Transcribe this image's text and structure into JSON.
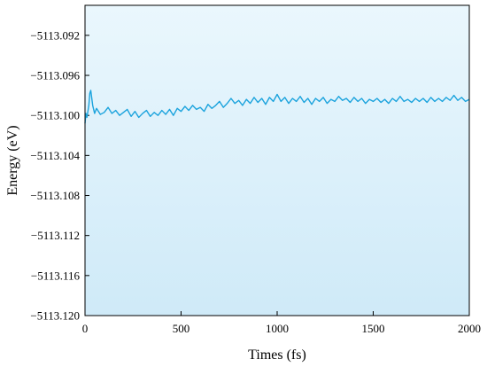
{
  "chart_data": {
    "type": "line",
    "xlabel": "Times (fs)",
    "ylabel": "Energy (eV)",
    "xlim": [
      0,
      2000
    ],
    "ylim": [
      -5113.12,
      -5113.089
    ],
    "x_ticks": [
      0,
      500,
      1000,
      1500,
      2000
    ],
    "x_tick_labels": [
      "0",
      "500",
      "1000",
      "1500",
      "2000"
    ],
    "y_ticks": [
      -5113.092,
      -5113.096,
      -5113.1,
      -5113.104,
      -5113.108,
      -5113.112,
      -5113.116,
      -5113.12
    ],
    "y_tick_labels": [
      "−5113.092",
      "−5113.096",
      "−5113.100",
      "−5113.104",
      "−5113.108",
      "−5113.112",
      "−5113.116",
      "−5113.120"
    ],
    "grid": false,
    "background_gradient": [
      "#eaf7fd",
      "#cfeaf8"
    ],
    "line_color": "#1ba3dd",
    "series": [
      {
        "x": [
          0,
          5,
          10,
          15,
          20,
          25,
          30,
          40,
          50,
          60,
          80,
          100,
          120,
          140,
          160,
          180,
          200,
          220,
          240,
          260,
          280,
          300,
          320,
          340,
          360,
          380,
          400,
          420,
          440,
          460,
          480,
          500,
          520,
          540,
          560,
          580,
          600,
          620,
          640,
          660,
          680,
          700,
          720,
          740,
          760,
          780,
          800,
          820,
          840,
          860,
          880,
          900,
          920,
          940,
          960,
          980,
          1000,
          1020,
          1040,
          1060,
          1080,
          1100,
          1120,
          1140,
          1160,
          1180,
          1200,
          1220,
          1240,
          1260,
          1280,
          1300,
          1320,
          1340,
          1360,
          1380,
          1400,
          1420,
          1440,
          1460,
          1480,
          1500,
          1520,
          1540,
          1560,
          1580,
          1600,
          1620,
          1640,
          1660,
          1680,
          1700,
          1720,
          1740,
          1760,
          1780,
          1800,
          1820,
          1840,
          1860,
          1880,
          1900,
          1920,
          1940,
          1960,
          1980,
          2000
        ],
        "values": [
          -5113.1008,
          -5113.0998,
          -5113.1002,
          -5113.0996,
          -5113.099,
          -5113.0978,
          -5113.0975,
          -5113.099,
          -5113.0998,
          -5113.0993,
          -5113.0999,
          -5113.0997,
          -5113.0992,
          -5113.0998,
          -5113.0995,
          -5113.1,
          -5113.0997,
          -5113.0994,
          -5113.1001,
          -5113.0996,
          -5113.1002,
          -5113.0998,
          -5113.0995,
          -5113.1001,
          -5113.0997,
          -5113.1,
          -5113.0995,
          -5113.0999,
          -5113.0994,
          -5113.1,
          -5113.0993,
          -5113.0996,
          -5113.0991,
          -5113.0995,
          -5113.099,
          -5113.0994,
          -5113.0992,
          -5113.0996,
          -5113.0989,
          -5113.0993,
          -5113.099,
          -5113.0986,
          -5113.0992,
          -5113.0988,
          -5113.0983,
          -5113.0988,
          -5113.0985,
          -5113.099,
          -5113.0984,
          -5113.0988,
          -5113.0982,
          -5113.0987,
          -5113.0983,
          -5113.0989,
          -5113.0982,
          -5113.0986,
          -5113.0979,
          -5113.0986,
          -5113.0982,
          -5113.0988,
          -5113.0983,
          -5113.0986,
          -5113.0981,
          -5113.0987,
          -5113.0983,
          -5113.0989,
          -5113.0983,
          -5113.0986,
          -5113.0982,
          -5113.0988,
          -5113.0984,
          -5113.0986,
          -5113.0981,
          -5113.0985,
          -5113.0983,
          -5113.0987,
          -5113.0982,
          -5113.0986,
          -5113.0983,
          -5113.0988,
          -5113.0984,
          -5113.0986,
          -5113.0983,
          -5113.0987,
          -5113.0984,
          -5113.0988,
          -5113.0983,
          -5113.0986,
          -5113.0981,
          -5113.0986,
          -5113.0984,
          -5113.0987,
          -5113.0983,
          -5113.0986,
          -5113.0983,
          -5113.0987,
          -5113.0982,
          -5113.0986,
          -5113.0983,
          -5113.0986,
          -5113.0982,
          -5113.0985,
          -5113.098,
          -5113.0985,
          -5113.0982,
          -5113.0986,
          -5113.0984
        ]
      }
    ]
  }
}
